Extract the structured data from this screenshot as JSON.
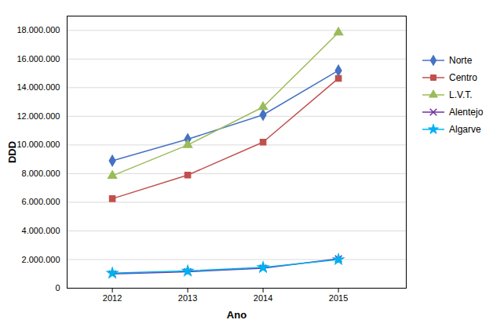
{
  "chart_data": {
    "type": "line",
    "x": [
      2012,
      2013,
      2014,
      2015
    ],
    "series": [
      {
        "name": "Norte",
        "color": "#4472C4",
        "marker": "diamond",
        "values": [
          8900000,
          10400000,
          12100000,
          15200000
        ]
      },
      {
        "name": "Centro",
        "color": "#C0504D",
        "marker": "square",
        "values": [
          6250000,
          7900000,
          10200000,
          14650000
        ]
      },
      {
        "name": "L.V.T.",
        "color": "#9BBB59",
        "marker": "triangle",
        "values": [
          7850000,
          10000000,
          12650000,
          17850000
        ]
      },
      {
        "name": "Alentejo",
        "color": "#7030A0",
        "marker": "x",
        "values": [
          1000000,
          1150000,
          1400000,
          2050000
        ]
      },
      {
        "name": "Algarve",
        "color": "#00B0F0",
        "marker": "star",
        "values": [
          1050000,
          1200000,
          1450000,
          2000000
        ]
      }
    ],
    "xlabel": "Ano",
    "ylabel": "DDD",
    "xlim": [
      2011.4,
      2015.9
    ],
    "xticks": [
      2012,
      2013,
      2014,
      2015
    ],
    "ylim": [
      0,
      19000000
    ],
    "yticks": [
      0,
      {
        "value": 2000000,
        "label": "2.000.000"
      },
      {
        "value": 4000000,
        "label": "4.000.000"
      },
      {
        "value": 6000000,
        "label": "6.000.000"
      },
      {
        "value": 8000000,
        "label": "8.000.000"
      },
      {
        "value": 10000000,
        "label": "10.000.000"
      },
      {
        "value": 12000000,
        "label": "12.000.000"
      },
      {
        "value": 14000000,
        "label": "14.000.000"
      },
      {
        "value": 16000000,
        "label": "16.000.000"
      },
      {
        "value": 18000000,
        "label": "18.000.000"
      }
    ],
    "grid": true,
    "legend": "right"
  }
}
